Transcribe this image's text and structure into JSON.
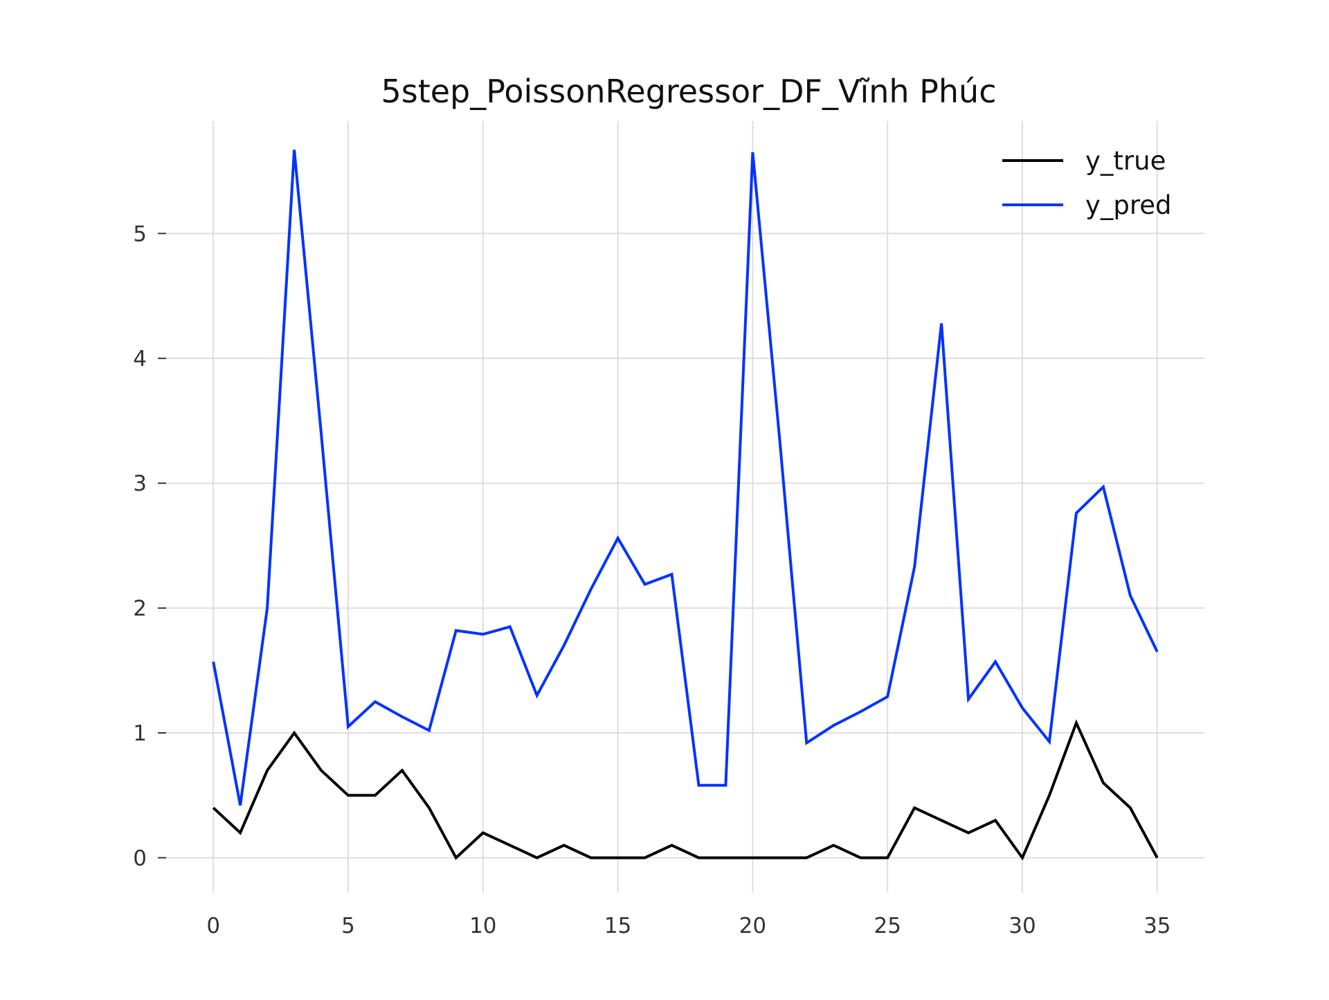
{
  "chart_data": {
    "type": "line",
    "title": "5step_PoissonRegressor_DF_Vĩnh Phúc",
    "xlabel": "",
    "ylabel": "",
    "xlim": [
      -1.75,
      36.75
    ],
    "ylim": [
      -0.28,
      5.9
    ],
    "xticks": [
      0,
      5,
      10,
      15,
      20,
      25,
      30,
      35
    ],
    "yticks": [
      0,
      1,
      2,
      3,
      4,
      5
    ],
    "grid": true,
    "legend_position": "top-right",
    "x": [
      0,
      1,
      2,
      3,
      4,
      5,
      6,
      7,
      8,
      9,
      10,
      11,
      12,
      13,
      14,
      15,
      16,
      17,
      18,
      19,
      20,
      21,
      22,
      23,
      24,
      25,
      26,
      27,
      28,
      29,
      30,
      31,
      32,
      33,
      34,
      35
    ],
    "series": [
      {
        "name": "y_true",
        "color": "#000000",
        "values": [
          0.4,
          0.2,
          0.7,
          1.0,
          0.7,
          0.5,
          0.5,
          0.7,
          0.4,
          0.0,
          0.2,
          0.1,
          0.0,
          0.1,
          0.0,
          0.0,
          0.0,
          0.1,
          0.0,
          0.0,
          0.0,
          0.0,
          0.0,
          0.1,
          0.0,
          0.0,
          0.4,
          0.3,
          0.2,
          0.3,
          0.0,
          0.5,
          1.08,
          0.6,
          0.4,
          0.0
        ]
      },
      {
        "name": "y_pred",
        "color": "#0033ff",
        "values": [
          1.57,
          0.42,
          2.0,
          5.67,
          3.4,
          1.05,
          1.25,
          1.13,
          1.02,
          1.82,
          1.79,
          1.85,
          1.3,
          1.7,
          2.15,
          2.56,
          2.19,
          2.27,
          0.58,
          0.58,
          5.65,
          3.35,
          0.92,
          1.06,
          1.17,
          1.29,
          2.33,
          4.28,
          1.27,
          1.57,
          1.2,
          0.93,
          2.76,
          2.97,
          2.1,
          1.65
        ]
      }
    ]
  }
}
